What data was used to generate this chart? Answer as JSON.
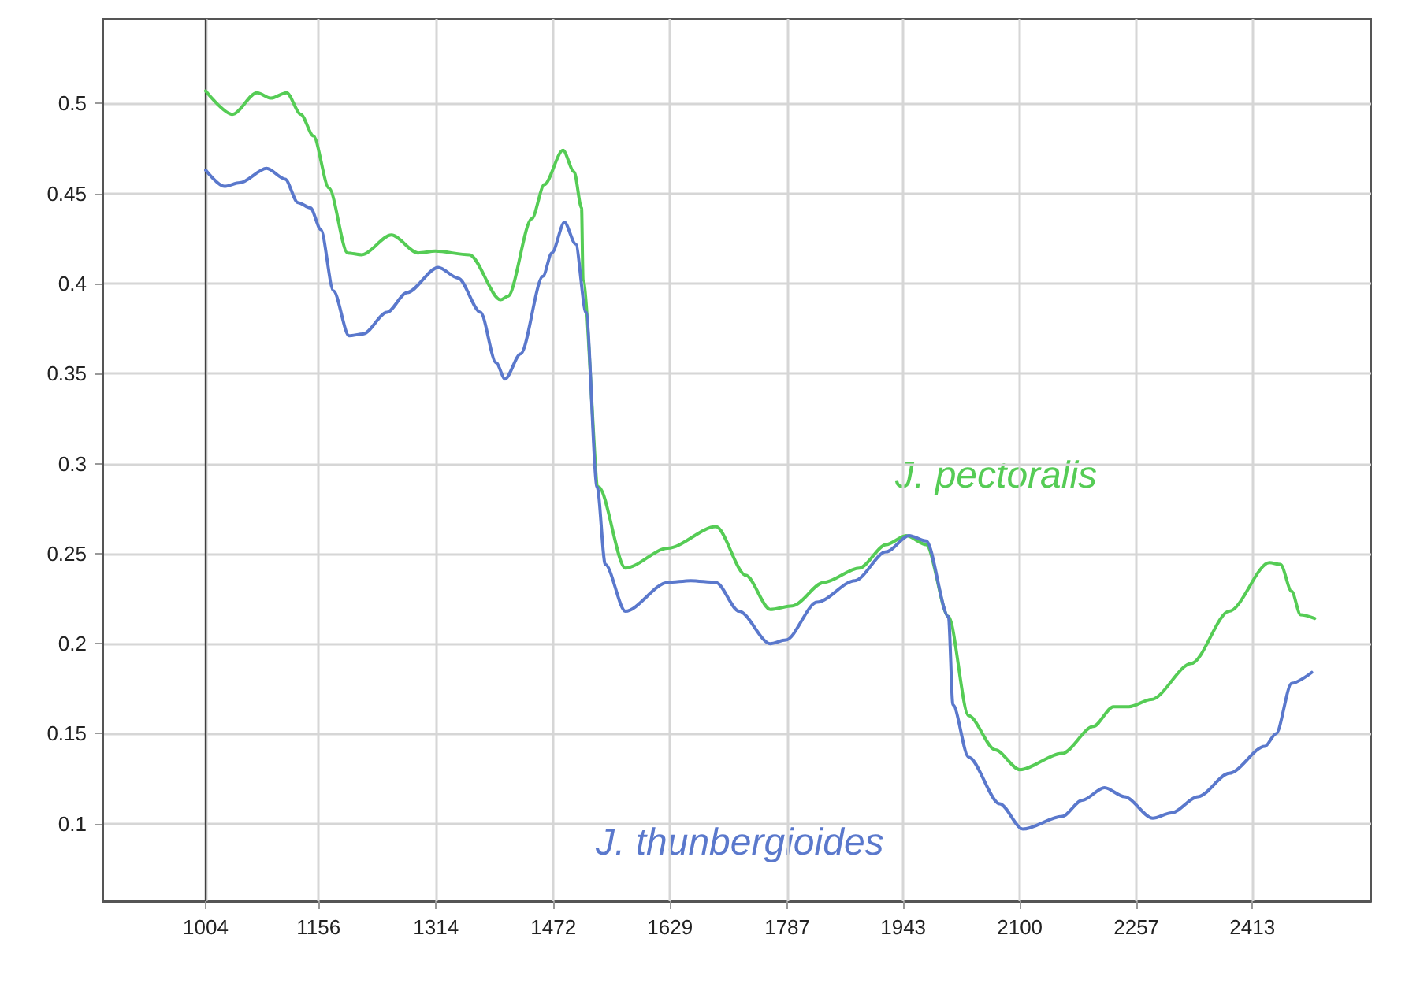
{
  "chart_data": {
    "type": "line",
    "xlim": [
      865,
      2573
    ],
    "xticks": [
      1004,
      1156,
      1314,
      1472,
      1629,
      1787,
      1943,
      2100,
      2257,
      2413
    ],
    "ylim": [
      0.057,
      0.547
    ],
    "yticks": [
      0.1,
      0.15,
      0.2,
      0.25,
      0.3,
      0.35,
      0.4,
      0.45,
      0.5
    ],
    "grid": true,
    "legend": false,
    "marker": "none",
    "line_style": "solid",
    "ref_lines": [
      {
        "axis": "x",
        "value": 1004,
        "color": "#404040"
      }
    ],
    "series": [
      {
        "name": "J. pectoralis",
        "color": "#55cc55",
        "x": [
          1004,
          1040,
          1073,
          1092,
          1113,
          1132,
          1149,
          1170,
          1195,
          1214,
          1254,
          1290,
          1313,
          1359,
          1401,
          1411,
          1443,
          1460,
          1485,
          1500,
          1510,
          1512,
          1533,
          1569,
          1626,
          1691,
          1731,
          1764,
          1794,
          1836,
          1884,
          1920,
          1947,
          1974,
          2004,
          2031,
          2067,
          2100,
          2157,
          2199,
          2226,
          2247,
          2277,
          2331,
          2382,
          2436,
          2451,
          2466,
          2478,
          2497
        ],
        "values": [
          0.507,
          0.494,
          0.506,
          0.503,
          0.506,
          0.494,
          0.482,
          0.453,
          0.417,
          0.416,
          0.427,
          0.417,
          0.418,
          0.416,
          0.391,
          0.393,
          0.436,
          0.455,
          0.474,
          0.462,
          0.442,
          0.402,
          0.287,
          0.242,
          0.253,
          0.265,
          0.238,
          0.219,
          0.221,
          0.234,
          0.242,
          0.255,
          0.26,
          0.255,
          0.215,
          0.16,
          0.141,
          0.13,
          0.139,
          0.154,
          0.165,
          0.165,
          0.169,
          0.189,
          0.218,
          0.245,
          0.244,
          0.229,
          0.216,
          0.214
        ]
      },
      {
        "name": "J. thunbergioides",
        "color": "#5a78cc",
        "x": [
          1004,
          1029,
          1050,
          1086,
          1111,
          1128,
          1145,
          1159,
          1176,
          1197,
          1216,
          1248,
          1275,
          1317,
          1344,
          1374,
          1395,
          1407,
          1428,
          1458,
          1470,
          1487,
          1502,
          1516,
          1531,
          1542,
          1569,
          1626,
          1657,
          1691,
          1722,
          1764,
          1785,
          1827,
          1878,
          1920,
          1951,
          1974,
          2004,
          2010,
          2031,
          2073,
          2104,
          2157,
          2184,
          2214,
          2241,
          2279,
          2304,
          2340,
          2382,
          2430,
          2445,
          2466,
          2493
        ],
        "values": [
          0.463,
          0.454,
          0.456,
          0.464,
          0.458,
          0.445,
          0.442,
          0.43,
          0.396,
          0.371,
          0.372,
          0.384,
          0.395,
          0.409,
          0.403,
          0.384,
          0.356,
          0.347,
          0.361,
          0.404,
          0.417,
          0.434,
          0.422,
          0.384,
          0.287,
          0.244,
          0.218,
          0.234,
          0.235,
          0.234,
          0.218,
          0.2,
          0.202,
          0.223,
          0.235,
          0.251,
          0.26,
          0.257,
          0.215,
          0.166,
          0.137,
          0.111,
          0.097,
          0.104,
          0.113,
          0.12,
          0.115,
          0.103,
          0.106,
          0.115,
          0.128,
          0.143,
          0.15,
          0.178,
          0.184
        ]
      }
    ]
  }
}
